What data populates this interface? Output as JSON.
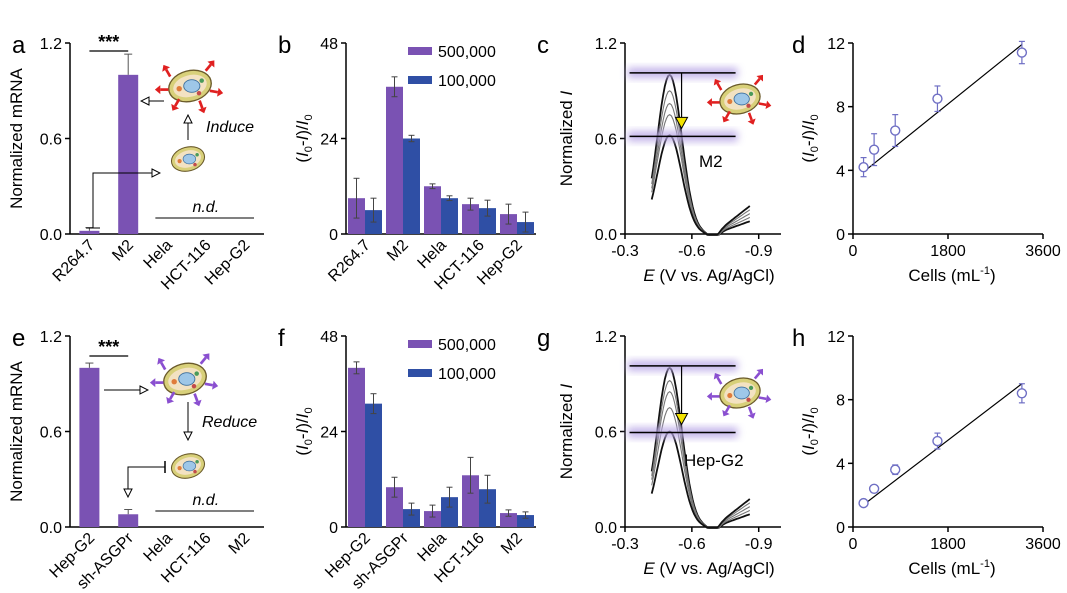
{
  "colors": {
    "purple": "#7a52b3",
    "blue": "#2f4fa5",
    "highlight": "#e11d1d",
    "circle": "#6f6fc4",
    "halo": "#b9a8e6",
    "arrow_fill": "#f2e200"
  },
  "chart_data": [
    {
      "panel": "a",
      "type": "bar",
      "ylabel": "Normalized mRNA",
      "ylim": [
        0,
        1.2
      ],
      "yticks": [
        "0.0",
        "0.6",
        "1.2"
      ],
      "categories": [
        "R264.7",
        "M2",
        "Hela",
        "HCT-116",
        "Hep-G2"
      ],
      "highlight": [
        1
      ],
      "values": [
        0.02,
        1.0,
        null,
        null,
        null
      ],
      "errors": [
        0.02,
        0.13,
        null,
        null,
        null
      ],
      "annotations": {
        "significance": "***",
        "not_detected": "n.d.",
        "arrow_label": "Induce"
      }
    },
    {
      "panel": "b",
      "type": "bar",
      "ylabel": "(I0-I)/I0",
      "ylim": [
        0,
        48
      ],
      "yticks": [
        "0",
        "24",
        "48"
      ],
      "categories": [
        "R264.7",
        "M2",
        "Hela",
        "HCT-116",
        "Hep-G2"
      ],
      "highlight": [
        1
      ],
      "series": [
        {
          "name": "500,000",
          "values": [
            9,
            37,
            12,
            7.5,
            5
          ],
          "errors": [
            5,
            2.5,
            0.6,
            1.5,
            2.5
          ]
        },
        {
          "name": "100,000",
          "values": [
            6,
            24,
            9,
            6.5,
            3
          ],
          "errors": [
            3,
            0.8,
            0.6,
            2,
            2.5
          ]
        }
      ]
    },
    {
      "panel": "c",
      "type": "line",
      "ylabel": "Normalized I",
      "xlabel": "E (V vs. Ag/AgCl)",
      "ylim": [
        0,
        1.2
      ],
      "xlim": [
        -0.3,
        -1.0
      ],
      "yticks": [
        "0.0",
        "0.6",
        "1.2"
      ],
      "xticks": [
        "-0.3",
        "-0.6",
        "-0.9"
      ],
      "peak_potential": -0.5,
      "peaks": [
        1.0,
        0.9,
        0.82,
        0.75,
        0.62
      ],
      "annotations": {
        "cell": "M2"
      }
    },
    {
      "panel": "d",
      "type": "scatter",
      "ylabel": "(I0-I)/I0",
      "xlabel": "Cells (mL-1)",
      "xlim": [
        0,
        3600
      ],
      "ylim": [
        0,
        12
      ],
      "yticks": [
        "0",
        "4",
        "8",
        "12"
      ],
      "xticks": [
        "0",
        "1800",
        "3600"
      ],
      "x": [
        200,
        400,
        800,
        1600,
        3200
      ],
      "y": [
        4.2,
        5.3,
        6.5,
        8.5,
        11.4
      ],
      "errors": [
        0.6,
        1.0,
        1.0,
        0.8,
        0.7
      ],
      "fit": [
        [
          200,
          3.9
        ],
        [
          3200,
          11.9
        ]
      ]
    },
    {
      "panel": "e",
      "type": "bar",
      "ylabel": "Normalized mRNA",
      "ylim": [
        0,
        1.2
      ],
      "yticks": [
        "0.0",
        "0.6",
        "1.2"
      ],
      "categories": [
        "Hep-G2",
        "sh-ASGPr",
        "Hela",
        "HCT-116",
        "M2"
      ],
      "highlight": [
        0
      ],
      "values": [
        1.0,
        0.08,
        null,
        null,
        null
      ],
      "errors": [
        0.03,
        0.03,
        null,
        null,
        null
      ],
      "annotations": {
        "significance": "***",
        "not_detected": "n.d.",
        "arrow_label": "Reduce"
      }
    },
    {
      "panel": "f",
      "type": "bar",
      "ylabel": "(I0-I)/I0",
      "ylim": [
        0,
        48
      ],
      "yticks": [
        "0",
        "24",
        "48"
      ],
      "categories": [
        "Hep-G2",
        "sh-ASGPr",
        "Hela",
        "HCT-116",
        "M2"
      ],
      "highlight": [
        0
      ],
      "series": [
        {
          "name": "500,000",
          "values": [
            40,
            10,
            4,
            13,
            3.5
          ],
          "errors": [
            1.5,
            2.5,
            1.5,
            4.5,
            0.8
          ]
        },
        {
          "name": "100,000",
          "values": [
            31,
            4.5,
            7.5,
            9.5,
            3
          ],
          "errors": [
            2.5,
            1.5,
            2.5,
            3.5,
            0.8
          ]
        }
      ]
    },
    {
      "panel": "g",
      "type": "line",
      "ylabel": "Normalized I",
      "xlabel": "E (V vs. Ag/AgCl)",
      "ylim": [
        0,
        1.2
      ],
      "xlim": [
        -0.3,
        -1.0
      ],
      "yticks": [
        "0.0",
        "0.6",
        "1.2"
      ],
      "xticks": [
        "-0.3",
        "-0.6",
        "-0.9"
      ],
      "peak_potential": -0.5,
      "peaks": [
        1.0,
        0.92,
        0.85,
        0.75,
        0.6
      ],
      "annotations": {
        "cell": "Hep-G2"
      }
    },
    {
      "panel": "h",
      "type": "scatter",
      "ylabel": "(I0-I)/I0",
      "xlabel": "Cells (mL-1)",
      "xlim": [
        0,
        3600
      ],
      "ylim": [
        0,
        12
      ],
      "yticks": [
        "0",
        "4",
        "8",
        "12"
      ],
      "xticks": [
        "0",
        "1800",
        "3600"
      ],
      "x": [
        200,
        400,
        800,
        1600,
        3200
      ],
      "y": [
        1.5,
        2.4,
        3.6,
        5.4,
        8.4
      ],
      "errors": [
        0.2,
        0.2,
        0.3,
        0.5,
        0.6
      ],
      "fit": [
        [
          200,
          1.4
        ],
        [
          3200,
          9.0
        ]
      ]
    }
  ]
}
